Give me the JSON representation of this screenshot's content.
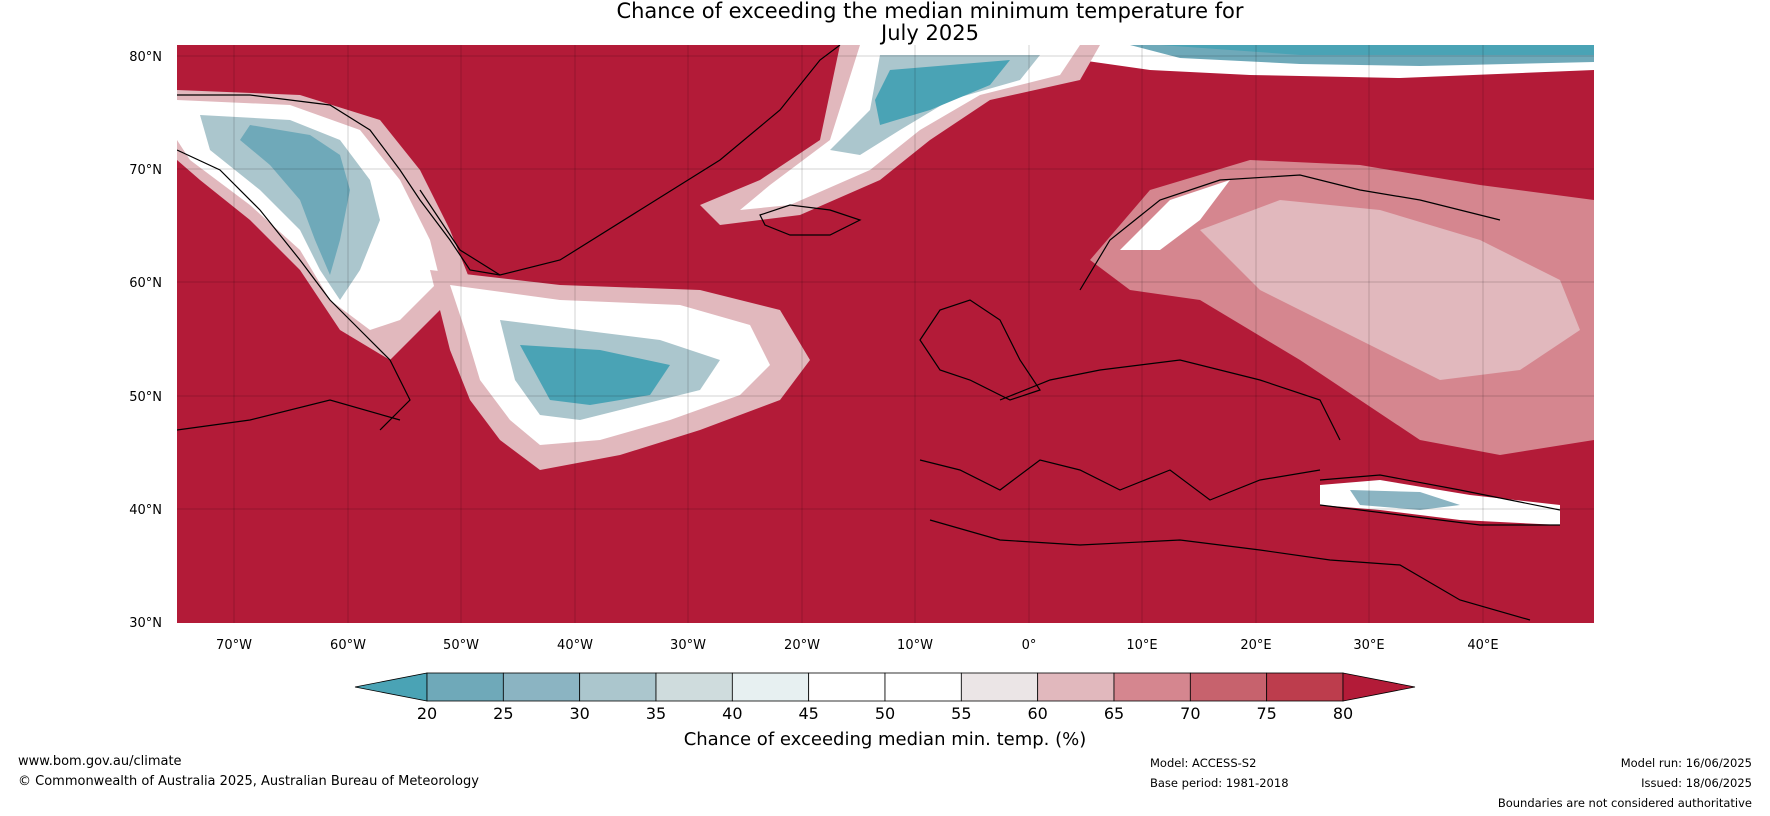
{
  "title": {
    "line1": "Chance of exceeding the median minimum temperature for",
    "line2": "July 2025"
  },
  "axes": {
    "lat_labels": [
      "80°N",
      "70°N",
      "60°N",
      "50°N",
      "40°N",
      "30°N"
    ],
    "lon_labels": [
      "70°W",
      "60°W",
      "50°W",
      "40°W",
      "30°W",
      "20°W",
      "10°W",
      "0°",
      "10°E",
      "20°E",
      "30°E",
      "40°E"
    ]
  },
  "colorbar": {
    "ticks": [
      "20",
      "25",
      "30",
      "35",
      "40",
      "45",
      "50",
      "55",
      "60",
      "65",
      "70",
      "75",
      "80"
    ],
    "label": "Chance of exceeding median min. temp. (%)",
    "colors": [
      "#4aa3b5",
      "#6fa9b9",
      "#8bb4c2",
      "#abc6cd",
      "#cfdcdd",
      "#e7f0f1",
      "#ffffff",
      "#ffffff",
      "#ebe5e6",
      "#e1b8bd",
      "#d5868f",
      "#c7626d",
      "#bd3d4d",
      "#b31b38"
    ]
  },
  "footer": {
    "website": "www.bom.gov.au/climate",
    "copyright": "© Commonwealth of Australia 2025, Australian Bureau of Meteorology",
    "model": "Model: ACCESS-S2",
    "base_period": "Base period: 1981-2018",
    "model_run": "Model run: 16/06/2025",
    "issued": "Issued: 18/06/2025",
    "boundaries": "Boundaries are not considered authoritative"
  }
}
